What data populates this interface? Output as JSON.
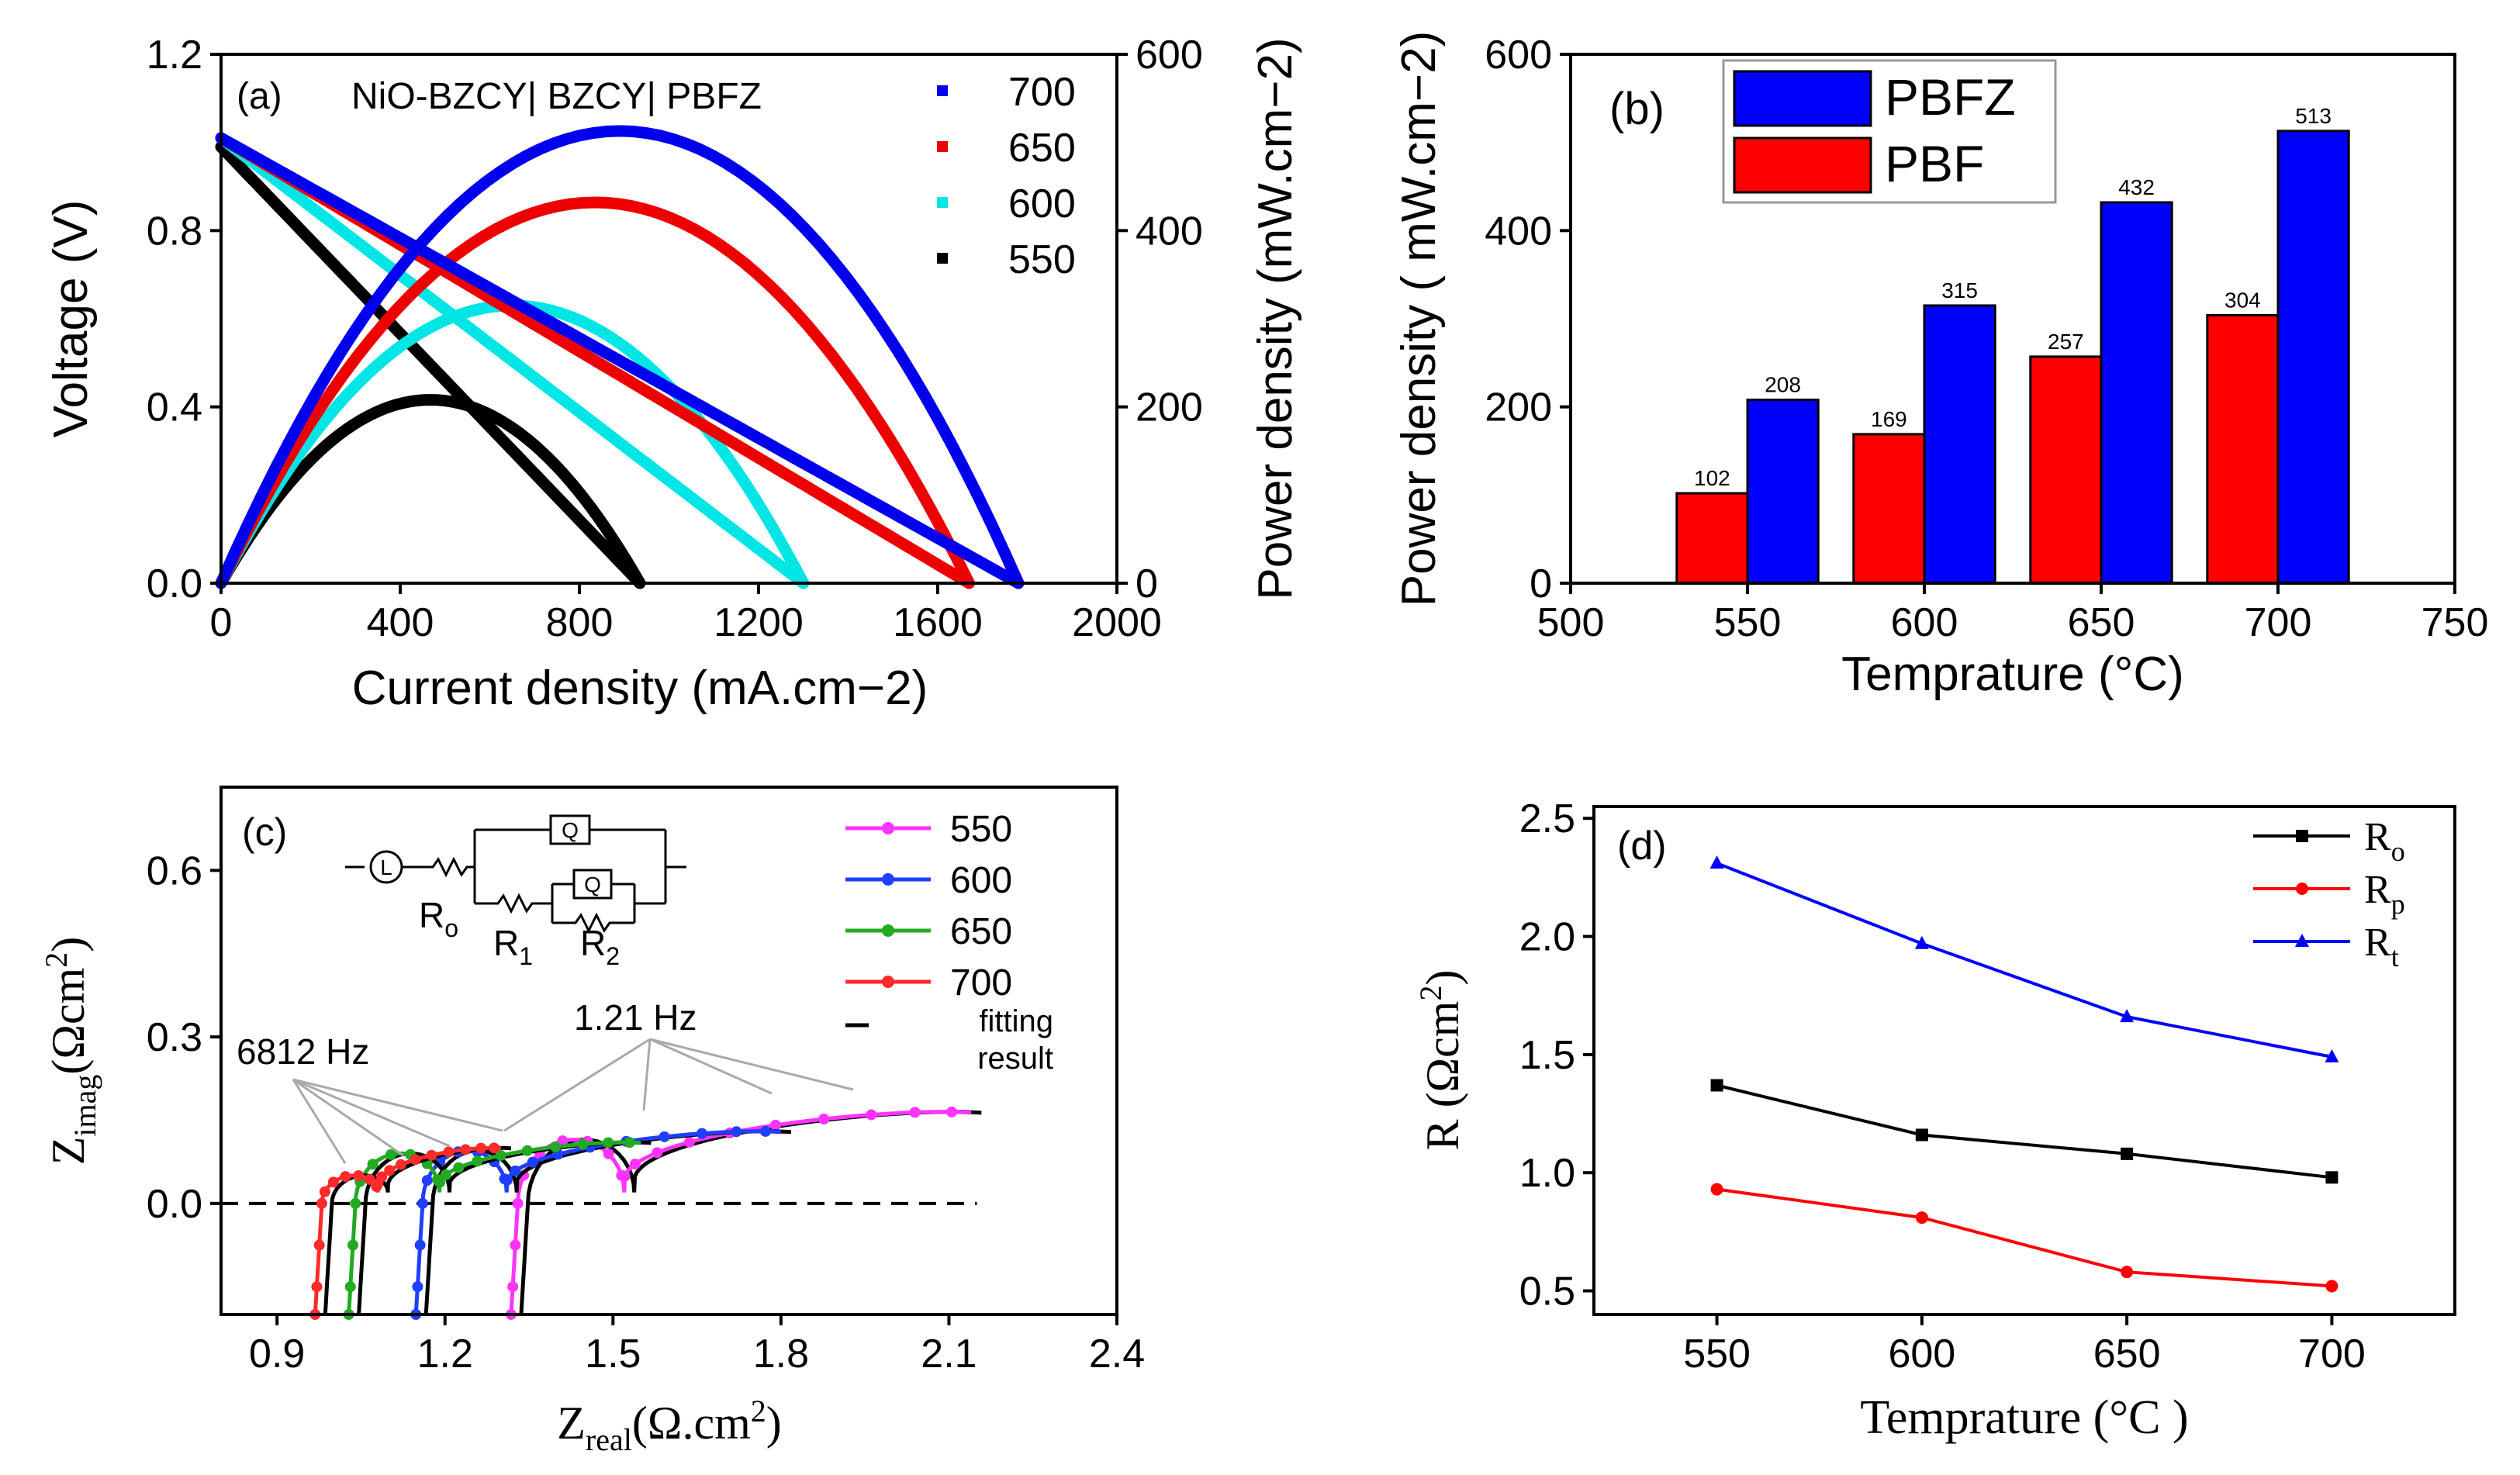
{
  "chart_data": [
    {
      "id": "a",
      "type": "line",
      "panel_label": "(a)",
      "title": "NiO-BZCY| BZCY| PBFZ",
      "xlabel": "Current density (mA.cm−2)",
      "ylabel": "Voltage (V)",
      "ylabel_right": "Power density (mW.cm−2)",
      "xlim": [
        0,
        2000
      ],
      "ylim": [
        0,
        1.2
      ],
      "ylim_right": [
        0,
        600
      ],
      "x_ticks": [
        0,
        400,
        800,
        1200,
        1600,
        2000
      ],
      "x_tick_labels": [
        "0",
        "400",
        "800",
        "1200",
        "1600",
        "2000"
      ],
      "y_ticks": [
        0,
        0.4,
        0.8,
        1.2
      ],
      "y_tick_labels": [
        "0.0",
        "0.4",
        "0.8",
        "1.2"
      ],
      "y_right_ticks": [
        0,
        200,
        400,
        600
      ],
      "y_right_tick_labels": [
        "0",
        "200",
        "400",
        "600"
      ],
      "legend": [
        "700",
        "650",
        "600",
        "550"
      ],
      "series": [
        {
          "name": "700",
          "color": "#0000ee",
          "ocv": 1.01,
          "i_max": 1780,
          "peak_power": 513
        },
        {
          "name": "650",
          "color": "#ee0000",
          "ocv": 1.01,
          "i_max": 1670,
          "peak_power": 432
        },
        {
          "name": "600",
          "color": "#00e5e5",
          "ocv": 1.01,
          "i_max": 1300,
          "peak_power": 315
        },
        {
          "name": "550",
          "color": "#000000",
          "ocv": 0.99,
          "i_max": 935,
          "peak_power": 208
        }
      ]
    },
    {
      "id": "b",
      "type": "bar",
      "panel_label": "(b)",
      "xlabel": "Temprature (°C)",
      "ylabel": "Power density ( mW.cm−2)",
      "xlim": [
        500,
        750
      ],
      "ylim": [
        0,
        600
      ],
      "x_ticks": [
        500,
        550,
        600,
        650,
        700,
        750
      ],
      "x_tick_labels": [
        "500",
        "550",
        "600",
        "650",
        "700",
        "750"
      ],
      "y_ticks": [
        0,
        200,
        400,
        600
      ],
      "y_tick_labels": [
        "0",
        "200",
        "400",
        "600"
      ],
      "categories": [
        550,
        600,
        650,
        700
      ],
      "series": [
        {
          "name": "PBFZ",
          "color": "#0000ff",
          "values": [
            208,
            315,
            432,
            513
          ],
          "labels": [
            "208",
            "315",
            "432",
            "513"
          ]
        },
        {
          "name": "PBF",
          "color": "#ff0000",
          "values": [
            102,
            169,
            257,
            304
          ],
          "labels": [
            "102",
            "169",
            "257",
            "304"
          ]
        }
      ]
    },
    {
      "id": "c",
      "type": "line",
      "panel_label": "(c)",
      "xlabel_main": "Z",
      "xlabel_sub": "real",
      "xlabel_unit": "(Ω.cm",
      "xlabel_sup": "2",
      "xlabel_close": ")",
      "ylabel_main": "Z",
      "ylabel_sub": "imag",
      "ylabel_unit": "(Ωcm",
      "ylabel_sup": "2",
      "ylabel_close": ")",
      "xlim": [
        0.8,
        2.4
      ],
      "ylim": [
        -0.2,
        0.75
      ],
      "x_ticks": [
        0.9,
        1.2,
        1.5,
        1.8,
        2.1,
        2.4
      ],
      "x_tick_labels": [
        "0.9",
        "1.2",
        "1.5",
        "1.8",
        "2.1",
        "2.4"
      ],
      "y_ticks": [
        0.0,
        0.3,
        0.6
      ],
      "y_tick_labels": [
        "0.0",
        "0.3",
        "0.6"
      ],
      "annotations": [
        "6812 Hz",
        "1.21 Hz"
      ],
      "circuit_labels": {
        "L": "L",
        "Q": "Q",
        "R0": "R",
        "R0_sub": "o",
        "R1": "R",
        "R1_sub": "1",
        "R2": "R",
        "R2_sub": "2"
      },
      "legend": [
        "550",
        "600",
        "650",
        "700"
      ],
      "fit_legend": [
        "fitting",
        "result"
      ],
      "series": [
        {
          "name": "550",
          "color": "#ff33ff",
          "r_start": 1.33,
          "arc1_end": 1.52,
          "arc1_h": 0.105,
          "r_end": 2.14,
          "arc2_h": 0.165
        },
        {
          "name": "600",
          "color": "#1f3fff",
          "r_start": 1.16,
          "arc1_end": 1.31,
          "arc1_h": 0.085,
          "r_end": 1.8,
          "arc2_h": 0.13
        },
        {
          "name": "650",
          "color": "#22aa22",
          "r_start": 1.04,
          "arc1_end": 1.19,
          "arc1_h": 0.08,
          "r_end": 1.55,
          "arc2_h": 0.11
        },
        {
          "name": "700",
          "color": "#ff2a2a",
          "r_start": 0.98,
          "arc1_end": 1.08,
          "arc1_h": 0.04,
          "r_end": 1.3,
          "arc2_h": 0.1
        }
      ]
    },
    {
      "id": "d",
      "type": "line",
      "panel_label": "(d)",
      "xlabel": "Temprature (°C )",
      "ylabel_main": "R (Ωcm",
      "ylabel_sup": "2",
      "ylabel_close": ")",
      "xlim": [
        520,
        730
      ],
      "ylim": [
        0.4,
        2.55
      ],
      "x_ticks": [
        550,
        600,
        650,
        700
      ],
      "x_tick_labels": [
        "550",
        "600",
        "650",
        "700"
      ],
      "y_ticks": [
        0.5,
        1.0,
        1.5,
        2.0,
        2.5
      ],
      "y_tick_labels": [
        "0.5",
        "1.0",
        "1.5",
        "2.0",
        "2.5"
      ],
      "x": [
        550,
        600,
        650,
        700
      ],
      "series": [
        {
          "name": "R",
          "sub": "o",
          "color": "#000000",
          "marker": "square",
          "values": [
            1.37,
            1.16,
            1.08,
            0.98
          ]
        },
        {
          "name": "R",
          "sub": "p",
          "color": "#ff0000",
          "marker": "circle",
          "values": [
            0.93,
            0.81,
            0.58,
            0.52
          ]
        },
        {
          "name": "R",
          "sub": "t",
          "color": "#0000ff",
          "marker": "triangle",
          "values": [
            2.31,
            1.97,
            1.66,
            1.49
          ]
        }
      ]
    }
  ]
}
